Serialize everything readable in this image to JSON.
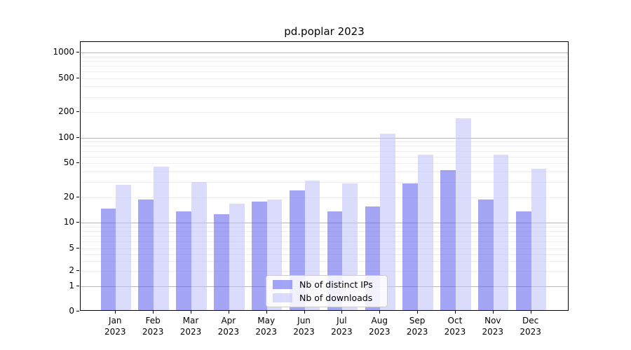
{
  "title": "pd.poplar 2023",
  "chart_data": {
    "type": "bar",
    "title": "pd.poplar 2023",
    "yscale": "symlog-like (log above 1, compressed linear toward 0)",
    "grid": true,
    "legend_position": "lower center (inside plot)",
    "ylim": [
      0,
      1320
    ],
    "ytick_values": [
      0,
      1,
      2,
      5,
      10,
      20,
      50,
      100,
      200,
      500,
      1000
    ],
    "ytick_labels": [
      "0",
      "1",
      "2",
      "5",
      "10",
      "20",
      "50",
      "100",
      "200",
      "500",
      "1000"
    ],
    "months": [
      "Jan",
      "Feb",
      "Mar",
      "Apr",
      "May",
      "Jun",
      "Jul",
      "Aug",
      "Sep",
      "Oct",
      "Nov",
      "Dec"
    ],
    "year": "2023",
    "categories": [
      "Jan 2023",
      "Feb 2023",
      "Mar 2023",
      "Apr 2023",
      "May 2023",
      "Jun 2023",
      "Jul 2023",
      "Aug 2023",
      "Sep 2023",
      "Oct 2023",
      "Nov 2023",
      "Dec 2023"
    ],
    "series": [
      {
        "name": "Nb of distinct IPs",
        "color": "#6e6ef0",
        "alpha": 0.62,
        "values": [
          14,
          18,
          13,
          12,
          17,
          23,
          13,
          15,
          28,
          40,
          18,
          13
        ]
      },
      {
        "name": "Nb of downloads",
        "color": "#c5c5fa",
        "alpha": 0.62,
        "values": [
          27,
          44,
          29,
          16,
          18,
          30,
          28,
          107,
          61,
          163,
          61,
          42
        ]
      }
    ],
    "colors": {
      "grid_major": "#b6b6b6",
      "grid_minor": "#eeeeee",
      "spine": "#000000",
      "legend_border": "#cccccc"
    }
  }
}
